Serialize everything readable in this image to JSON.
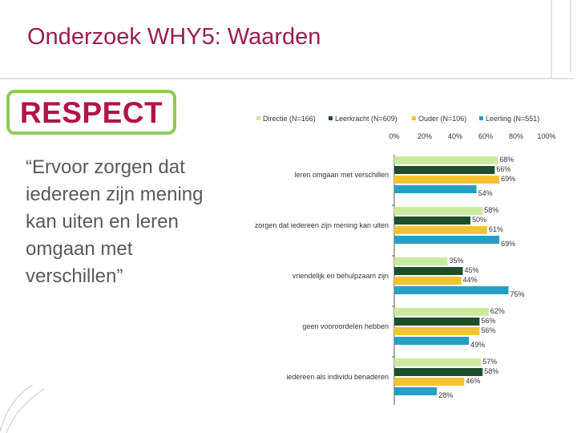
{
  "slide": {
    "title": "Onderzoek WHY5: Waarden",
    "badge": "RESPECT",
    "quote": "“Ervoor zorgen dat iedereen zijn mening kan uiten en leren omgaan met verschillen”"
  },
  "chart_data": {
    "type": "bar",
    "orientation": "horizontal",
    "categories": [
      "leren omgaan met verschillen",
      "zorgen dat iedereen zijn mening kan uiten",
      "vriendelijk en behulpzaam zijn",
      "geen vooroordelen hebben",
      "iedereen als individu benaderen"
    ],
    "series": [
      {
        "name": "Directie (N=166)",
        "color": "#ccea9e",
        "values": [
          68,
          58,
          35,
          62,
          57
        ]
      },
      {
        "name": "Leerkracht (N=609)",
        "color": "#1e4d2b",
        "values": [
          66,
          50,
          45,
          56,
          58
        ]
      },
      {
        "name": "Ouder (N=106)",
        "color": "#f4c430",
        "values": [
          69,
          61,
          44,
          56,
          46
        ]
      },
      {
        "name": "Leerling (N=551)",
        "color": "#25a0c4",
        "values": [
          54,
          69,
          75,
          49,
          28
        ]
      }
    ],
    "value_labels": [
      [
        "68%",
        "66%",
        "69%",
        "54%"
      ],
      [
        "58%",
        "50%",
        "61%",
        "69%"
      ],
      [
        "35%",
        "45%",
        "44%",
        "75%"
      ],
      [
        "62%",
        "56%",
        "56%",
        "49%"
      ],
      [
        "57%",
        "58%",
        "46%",
        "28%"
      ]
    ],
    "x_ticks": [
      "0%",
      "20%",
      "40%",
      "60%",
      "80%",
      "100%"
    ],
    "xlim": [
      0,
      100
    ],
    "legend_position": "top",
    "grid": false
  }
}
